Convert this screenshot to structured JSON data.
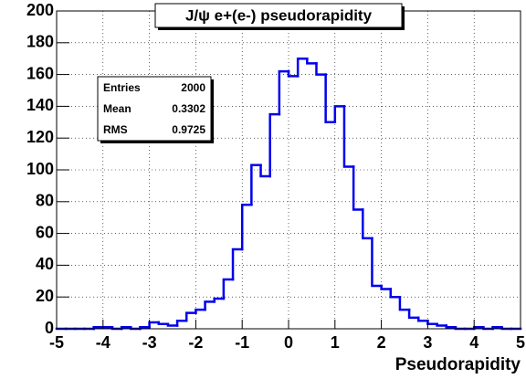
{
  "chart_data": {
    "type": "histogram",
    "title": "J/ψ e+(e-) pseudorapidity",
    "x_label": "Pseudorapidity",
    "bins": [
      -5,
      -4.8,
      -4.6,
      -4.4,
      -4.2,
      -4,
      -3.8,
      -3.6,
      -3.4,
      -3.2,
      -3,
      -2.8,
      -2.6,
      -2.4,
      -2.2,
      -2,
      -1.8,
      -1.6,
      -1.4,
      -1.2,
      -1,
      -0.8,
      -0.6,
      -0.4,
      -0.2,
      0,
      0.2,
      0.4,
      0.6,
      0.8,
      1,
      1.2,
      1.4,
      1.6,
      1.8,
      2,
      2.2,
      2.4,
      2.6,
      2.8,
      3,
      3.2,
      3.4,
      3.6,
      3.8,
      4,
      4.2,
      4.4,
      4.6,
      4.8,
      5
    ],
    "counts": [
      0,
      0,
      0,
      0,
      1,
      1,
      0,
      1,
      0,
      1,
      4,
      3,
      2,
      5,
      10,
      12,
      17,
      19,
      31,
      50,
      78,
      103,
      96,
      135,
      162,
      159,
      170,
      167,
      160,
      130,
      140,
      102,
      75,
      57,
      27,
      25,
      20,
      12,
      7,
      5,
      3,
      2,
      1,
      0,
      0,
      1,
      0,
      1,
      0,
      0
    ],
    "color": "#0000ee",
    "xlim": [
      -5,
      5
    ],
    "xticks": [
      -5,
      -4,
      -3,
      -2,
      -1,
      0,
      1,
      2,
      3,
      4,
      5
    ],
    "ylim": [
      0,
      200
    ],
    "yticks": [
      0,
      20,
      40,
      60,
      80,
      100,
      120,
      140,
      160,
      180,
      200
    ],
    "grid": true,
    "stats": [
      {
        "label": "Entries",
        "value": 2000
      },
      {
        "label": "Mean",
        "value": 0.3302
      },
      {
        "label": "RMS",
        "value": 0.9725
      }
    ]
  }
}
